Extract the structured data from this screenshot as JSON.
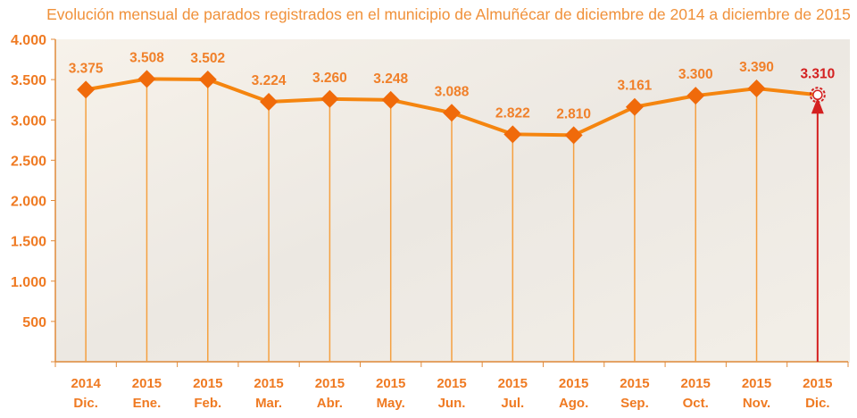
{
  "chart_data": {
    "type": "line",
    "title": "Evolución mensual de parados registrados en el municipio de Almuñécar de diciembre de 2014 a diciembre de 2015",
    "categories": [
      [
        "2014",
        "Dic."
      ],
      [
        "2015",
        "Ene."
      ],
      [
        "2015",
        "Feb."
      ],
      [
        "2015",
        "Mar."
      ],
      [
        "2015",
        "Abr."
      ],
      [
        "2015",
        "May."
      ],
      [
        "2015",
        "Jun."
      ],
      [
        "2015",
        "Jul."
      ],
      [
        "2015",
        "Ago."
      ],
      [
        "2015",
        "Sep."
      ],
      [
        "2015",
        "Oct."
      ],
      [
        "2015",
        "Nov."
      ],
      [
        "2015",
        "Dic."
      ]
    ],
    "values": [
      3375,
      3508,
      3502,
      3224,
      3260,
      3248,
      3088,
      2822,
      2810,
      3161,
      3300,
      3390,
      3310
    ],
    "data_labels": [
      "3.375",
      "3.508",
      "3.502",
      "3.224",
      "3.260",
      "3.248",
      "3.088",
      "2.822",
      "2.810",
      "3.161",
      "3.300",
      "3.390",
      "3.310"
    ],
    "y_ticks": [
      500,
      1000,
      1500,
      2000,
      2500,
      3000,
      3500,
      4000
    ],
    "y_tick_labels": [
      "500",
      "1.000",
      "1.500",
      "2.000",
      "2.500",
      "3.000",
      "3.500",
      "4.000"
    ],
    "ylim": [
      0,
      4000
    ],
    "grid": false,
    "colors": {
      "line": "#f5850f",
      "marker": "#f06a0a",
      "label": "#f0802a",
      "axis_label": "#ef7a22",
      "highlight": "#d42020"
    },
    "highlight_last_point": true
  }
}
